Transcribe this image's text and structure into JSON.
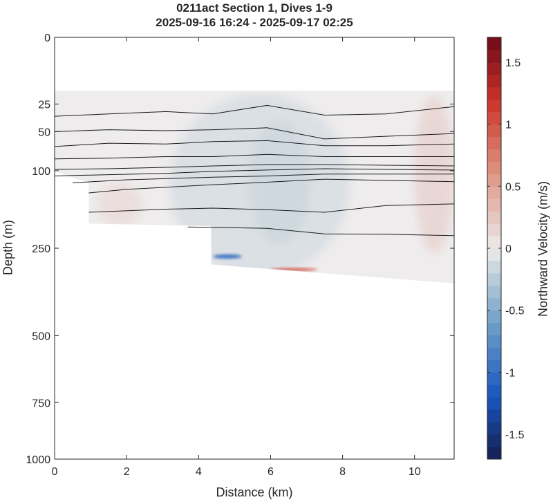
{
  "chart_data": {
    "type": "heatmap",
    "title": "0211act Section 1, Dives 1-9",
    "subtitle": "2025-09-16 16:24 - 2025-09-17 02:25",
    "xlabel": "Distance (km)",
    "ylabel": "Depth (m)",
    "xlim": [
      0,
      11.1
    ],
    "xticks": [
      0,
      2,
      4,
      6,
      8,
      10
    ],
    "ylim": [
      0,
      1000
    ],
    "yscale": "sqrt",
    "yreversed": true,
    "yticks": [
      0,
      25,
      50,
      100,
      250,
      500,
      750,
      1000
    ],
    "colorbar": {
      "label": "Northward Velocity (m/s)",
      "limits": [
        -1.7,
        1.7
      ],
      "ticks": [
        -1.5,
        -1,
        -0.5,
        0,
        0.5,
        1,
        1.5
      ],
      "tick_labels": [
        "-1.5",
        "-1",
        "-0.5",
        "0",
        "0.5",
        "1",
        "1.5"
      ],
      "colormap": "diverging blue-white-red",
      "negative_color": "#1a2a70",
      "positive_color": "#6b0a1a"
    },
    "data_region": {
      "top_depth": 16,
      "bottom_depth_profile": [
        {
          "x": 0,
          "depth": 100
        },
        {
          "x": 0.95,
          "depth": 120
        },
        {
          "x": 0.95,
          "depth": 195
        },
        {
          "x": 4.35,
          "depth": 200
        },
        {
          "x": 4.35,
          "depth": 290
        },
        {
          "x": 11.1,
          "depth": 340
        }
      ]
    },
    "velocity_features": [
      {
        "x": [
          3.2,
          8.2
        ],
        "depth": [
          18,
          320
        ],
        "v": -0.1
      },
      {
        "x": [
          5.4,
          7.1
        ],
        "depth": [
          40,
          240
        ],
        "v": -0.15
      },
      {
        "x": [
          10.0,
          11.1
        ],
        "depth": [
          20,
          260
        ],
        "v": 0.15
      },
      {
        "x": [
          1.2,
          2.4
        ],
        "depth": [
          120,
          200
        ],
        "v": 0.1
      },
      {
        "x": [
          4.4,
          5.2
        ],
        "depth": [
          265,
          275
        ],
        "v": -1.0
      },
      {
        "x": [
          6.0,
          7.3
        ],
        "depth": [
          300,
          306
        ],
        "v": 1.0
      }
    ],
    "contours": [
      {
        "x": [
          0,
          1.5,
          3.1,
          4.4,
          5.9,
          7.5,
          9.2,
          11.1
        ],
        "depth": [
          35,
          33,
          31,
          33,
          26,
          34,
          33,
          27
        ]
      },
      {
        "x": [
          0,
          1.5,
          3.1,
          4.4,
          5.9,
          7.5,
          9.2,
          11.1
        ],
        "depth": [
          50,
          48,
          49,
          48,
          46,
          58,
          55,
          52
        ]
      },
      {
        "x": [
          0,
          1.5,
          3.1,
          4.4,
          5.9,
          7.5,
          9.2,
          11.1
        ],
        "depth": [
          67,
          63,
          64,
          61,
          60,
          66,
          66,
          64
        ]
      },
      {
        "x": [
          0,
          1.5,
          3.1,
          4.4,
          5.9,
          7.5,
          9.2,
          11.1
        ],
        "depth": [
          83,
          82,
          80,
          80,
          77,
          80,
          80,
          80
        ]
      },
      {
        "x": [
          0,
          1.5,
          3.1,
          4.4,
          5.9,
          7.5,
          9.2,
          11.1
        ],
        "depth": [
          98,
          97,
          95,
          93,
          91,
          91,
          92,
          93
        ]
      },
      {
        "x": [
          0,
          1.5,
          3.1,
          4.4,
          5.9,
          7.5,
          9.2,
          11.1
        ],
        "depth": [
          108,
          106,
          104,
          101,
          99,
          97,
          98,
          99
        ]
      },
      {
        "x": [
          0.5,
          2.0,
          4.4,
          5.9,
          7.5,
          9.2,
          11.1
        ],
        "depth": [
          119,
          114,
          110,
          108,
          105,
          105,
          105
        ]
      },
      {
        "x": [
          0.95,
          2.0,
          4.4,
          5.9,
          7.5,
          9.2,
          11.1
        ],
        "depth": [
          136,
          130,
          122,
          118,
          113,
          115,
          117
        ]
      },
      {
        "x": [
          0.95,
          3.1,
          4.4,
          5.9,
          7.5,
          9.2,
          11.1
        ],
        "depth": [
          172,
          166,
          164,
          167,
          172,
          159,
          156
        ]
      },
      {
        "x": [
          3.7,
          5.9,
          7.5,
          9.2,
          11.1
        ],
        "depth": [
          202,
          205,
          217,
          218,
          221
        ]
      }
    ]
  }
}
